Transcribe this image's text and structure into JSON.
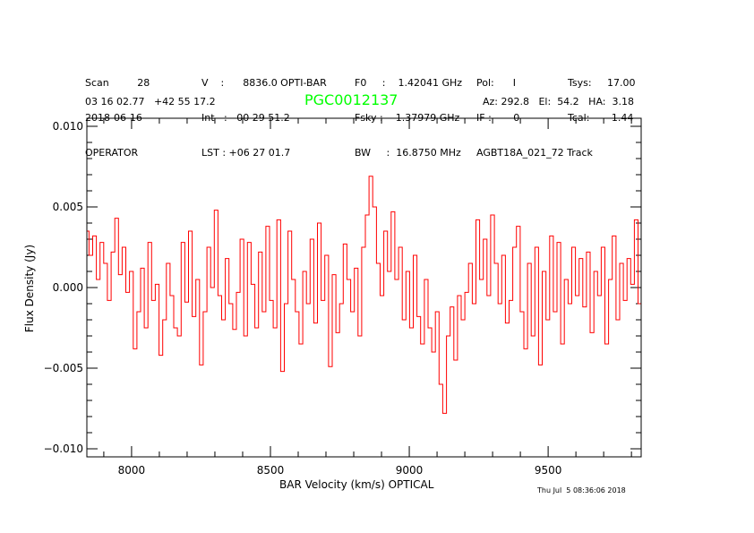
{
  "header": {
    "col1": [
      "Scan         28",
      "2018-06-16",
      "OPERATOR"
    ],
    "col2": [
      "V    :      8836.0 OPTI-BAR",
      "Int   :   00 29 51.2",
      "LST : +06 27 01.7"
    ],
    "col3": [
      "F0     :    1.42041 GHz",
      "Fsky :    1.37979 GHz",
      "BW     :  16.8750 MHz"
    ],
    "col4": [
      "Pol:      I",
      "IF :       0",
      "AGBT18A_021_72 Track"
    ],
    "col5": [
      "Tsys:     17.00",
      "Tcal:       1.44"
    ],
    "coords": "03 16 02.77   +42 55 17.2",
    "source": "PGC0012137",
    "pointing": "Az: 292.8   El:  54.2   HA:  3.18"
  },
  "timestamp": "Thu Jul  5 08:36:06 2018",
  "chart_data": {
    "type": "line",
    "style": "histogram",
    "title": "PGC0012137",
    "xlabel": "BAR Velocity (km/s) OPTICAL",
    "ylabel": "Flux Density (Jy)",
    "xlim": [
      7839,
      9835
    ],
    "ylim": [
      -0.0105,
      0.0105
    ],
    "xticks": [
      8000,
      8500,
      9000,
      9500
    ],
    "xtick_labels": [
      "8000",
      "8500",
      "9000",
      "9500"
    ],
    "yticks": [
      0.01,
      0.005,
      0.0,
      -0.005,
      -0.01
    ],
    "ytick_labels": [
      "0.010",
      "0.005",
      "0.000",
      "−0.005",
      "−0.010"
    ],
    "grid": false,
    "series_color": "#ff0000",
    "x0": 7840,
    "dx": 13.27,
    "values": [
      0.0035,
      0.002,
      0.0032,
      0.0005,
      0.0028,
      0.0015,
      -0.0008,
      0.0022,
      0.0043,
      0.0008,
      0.0025,
      -0.0003,
      0.001,
      -0.0038,
      -0.0015,
      0.0012,
      -0.0025,
      0.0028,
      -0.0008,
      0.0002,
      -0.0042,
      -0.002,
      0.0015,
      -0.0005,
      -0.0025,
      -0.003,
      0.0028,
      -0.0009,
      0.0035,
      -0.0018,
      0.0005,
      -0.0048,
      -0.0015,
      0.0025,
      0.0,
      0.0048,
      -0.0005,
      -0.002,
      0.0018,
      -0.001,
      -0.0026,
      -0.0003,
      0.003,
      -0.003,
      0.0028,
      0.0002,
      -0.0025,
      0.0022,
      -0.0015,
      0.0038,
      -0.0008,
      -0.0025,
      0.0042,
      -0.0052,
      -0.001,
      0.0035,
      0.0005,
      -0.0015,
      -0.0035,
      0.001,
      -0.001,
      0.003,
      -0.0022,
      0.004,
      -0.0008,
      0.002,
      -0.0049,
      0.0008,
      -0.0028,
      -0.001,
      0.0027,
      0.0005,
      -0.0015,
      0.0012,
      -0.003,
      0.0025,
      0.0045,
      0.0069,
      0.005,
      0.0015,
      -0.0005,
      0.0035,
      0.001,
      0.0047,
      0.0005,
      0.0025,
      -0.002,
      0.001,
      -0.0025,
      0.002,
      -0.0018,
      -0.0035,
      0.0005,
      -0.0025,
      -0.004,
      -0.0015,
      -0.006,
      -0.0078,
      -0.003,
      -0.0012,
      -0.0045,
      -0.0005,
      -0.002,
      -0.0003,
      0.0015,
      -0.001,
      0.0042,
      0.0005,
      0.003,
      -0.0005,
      0.0045,
      0.0015,
      -0.001,
      0.002,
      -0.0022,
      -0.0008,
      0.0025,
      0.0038,
      -0.0015,
      -0.0038,
      0.0015,
      -0.003,
      0.0025,
      -0.0048,
      0.001,
      -0.002,
      0.0032,
      -0.0015,
      0.0028,
      -0.0035,
      0.0005,
      -0.001,
      0.0025,
      -0.0005,
      0.0018,
      -0.0012,
      0.0022,
      -0.0028,
      0.001,
      -0.0005,
      0.0025,
      -0.0035,
      0.0005,
      0.0032,
      -0.002,
      0.0015,
      -0.0008,
      0.0018,
      0.0002,
      0.0042,
      -0.001
    ]
  }
}
